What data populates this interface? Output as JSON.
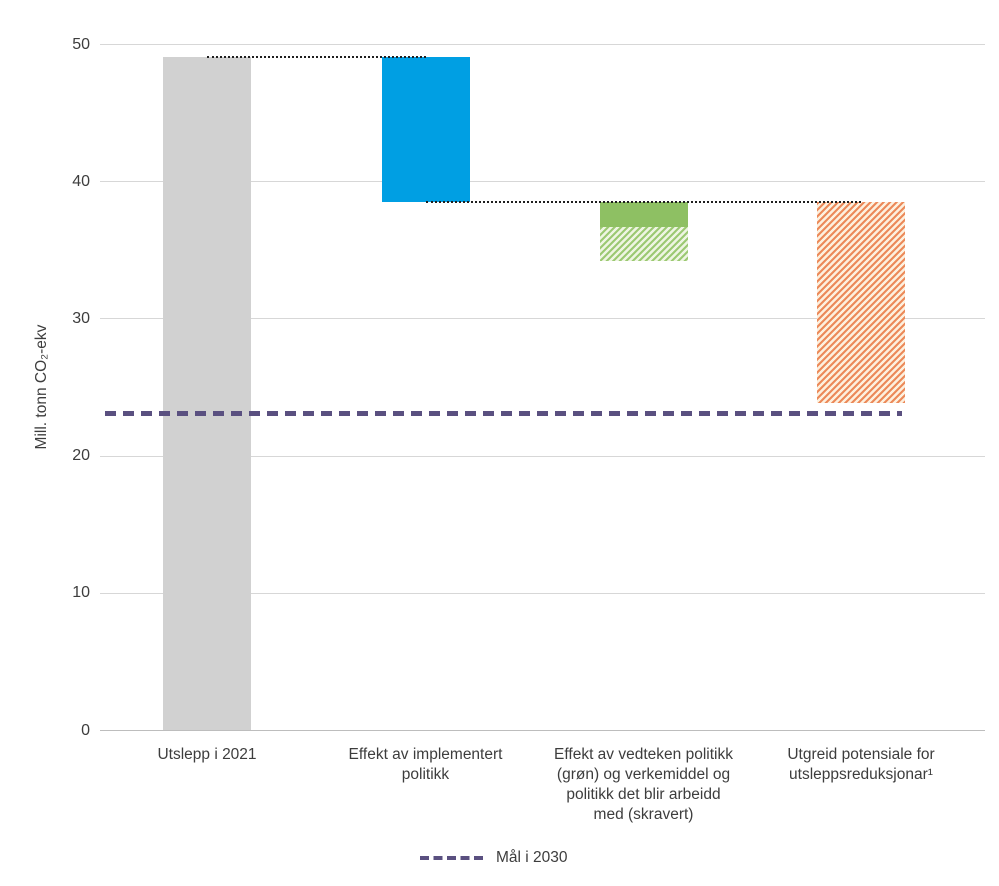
{
  "chart_data": {
    "type": "bar",
    "subtype": "waterfall",
    "ylabel": "Mill. tonn CO₂-ekv",
    "ylim": [
      0,
      50
    ],
    "yticks": [
      0,
      10,
      20,
      30,
      40,
      50
    ],
    "grid": "horizontal",
    "bars": [
      {
        "label": "Utslepp i 2021",
        "segments": [
          {
            "from": 0,
            "to": 49.1,
            "style": "solid",
            "color": "#d1d1d1"
          }
        ]
      },
      {
        "label": "Effekt av implementert politikk",
        "segments": [
          {
            "from": 38.5,
            "to": 49.1,
            "style": "solid",
            "color": "#009fe3"
          }
        ]
      },
      {
        "label": "Effekt av vedteken politikk (grøn) og verkemiddel og politikk det blir arbeidd med (skravert)",
        "segments": [
          {
            "from": 36.7,
            "to": 38.5,
            "style": "solid",
            "color": "#8ec063"
          },
          {
            "from": 34.2,
            "to": 36.7,
            "style": "hatched",
            "color": "#9cc973",
            "bg": "#eef5e2"
          }
        ]
      },
      {
        "label": "Utgreid potensiale for utsleppsreduksjonar¹",
        "segments": [
          {
            "from": 23.9,
            "to": 38.5,
            "style": "hatched",
            "color": "#ec8a5a",
            "bg": "#fdf0de"
          }
        ]
      }
    ],
    "connectors": [
      {
        "value": 49.1,
        "from_bar": 0,
        "to_bar": 1
      },
      {
        "value": 38.5,
        "from_bar": 1,
        "to_bar": 3
      }
    ],
    "target_line": {
      "label": "Mål i 2030",
      "value": 23.1,
      "color": "#5a5080"
    },
    "legend": {
      "label": "Mål i 2030"
    }
  }
}
